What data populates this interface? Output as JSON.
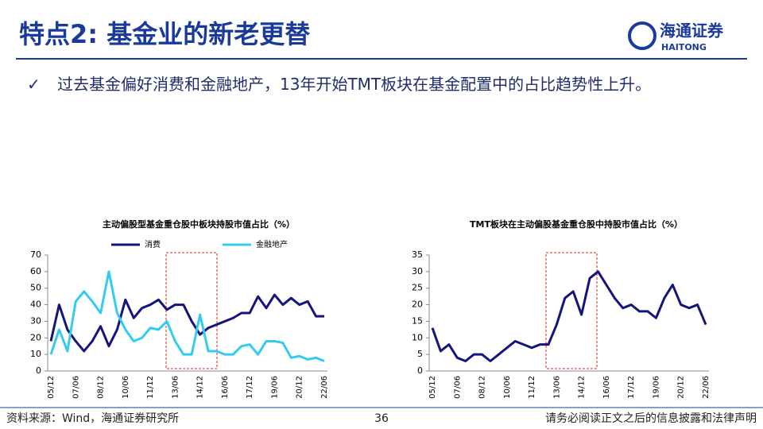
{
  "header": {
    "title": "特点2: 基金业的新老更替",
    "logo_cn": "海通证券",
    "logo_en": "HAITONG"
  },
  "bullet": {
    "mark": "✓",
    "text": "过去基金偏好消费和金融地产，13年开始TMT板块在基金配置中的占比趋势性上升。"
  },
  "footer": {
    "source": "资料来源：Wind，海通证券研究所",
    "page": "36",
    "disclaimer": "请务必阅读正文之后的信息披露和法律声明"
  },
  "chart_data": [
    {
      "type": "line",
      "title": "主动偏股型基金重仓股中板块持股市值占比（%）",
      "categories": [
        "05/12",
        null,
        null,
        "07/06",
        null,
        null,
        "08/12",
        null,
        null,
        "10/06",
        null,
        null,
        "11/12",
        null,
        null,
        "13/06",
        null,
        null,
        "14/12",
        null,
        null,
        "16/06",
        null,
        null,
        "17/12",
        null,
        null,
        "19/06",
        null,
        null,
        "20/12",
        null,
        null,
        "22/06"
      ],
      "series": [
        {
          "name": "消费",
          "color": "#14147a",
          "values": [
            18,
            40,
            25,
            18,
            12,
            18,
            27,
            15,
            25,
            43,
            32,
            38,
            40,
            43,
            37,
            40,
            40,
            30,
            22,
            26,
            28,
            30,
            32,
            35,
            35,
            45,
            38,
            46,
            40,
            44,
            40,
            42,
            33,
            33
          ]
        },
        {
          "name": "金融地产",
          "color": "#33ccee",
          "values": [
            10,
            25,
            12,
            42,
            48,
            42,
            35,
            60,
            35,
            25,
            18,
            20,
            26,
            25,
            30,
            18,
            10,
            10,
            34,
            12,
            12,
            10,
            10,
            15,
            16,
            10,
            18,
            18,
            17,
            8,
            9,
            7,
            8,
            6
          ]
        }
      ],
      "ylim": [
        0,
        70
      ],
      "yticks": [
        0,
        10,
        20,
        30,
        40,
        50,
        60,
        70
      ],
      "legend": "top"
    },
    {
      "type": "line",
      "title": "TMT板块在主动偏股基金重仓股中持股市值占比（%）",
      "categories": [
        "05/12",
        null,
        null,
        "07/06",
        null,
        null,
        "08/12",
        null,
        null,
        "10/06",
        null,
        null,
        "11/12",
        null,
        null,
        "13/06",
        null,
        null,
        "14/12",
        null,
        null,
        "16/06",
        null,
        null,
        "17/12",
        null,
        null,
        "19/06",
        null,
        null,
        "20/12",
        null,
        null,
        "22/06"
      ],
      "values": [
        13,
        6,
        8,
        4,
        3,
        5,
        5,
        3,
        5,
        7,
        9,
        8,
        7,
        8,
        8,
        14,
        22,
        24,
        17,
        28,
        30,
        26,
        22,
        19,
        20,
        18,
        18,
        16,
        22,
        26,
        20,
        19,
        20,
        14
      ],
      "color": "#14147a",
      "ylim": [
        0,
        35
      ],
      "yticks": [
        0,
        5,
        10,
        15,
        20,
        25,
        30,
        35
      ]
    }
  ]
}
